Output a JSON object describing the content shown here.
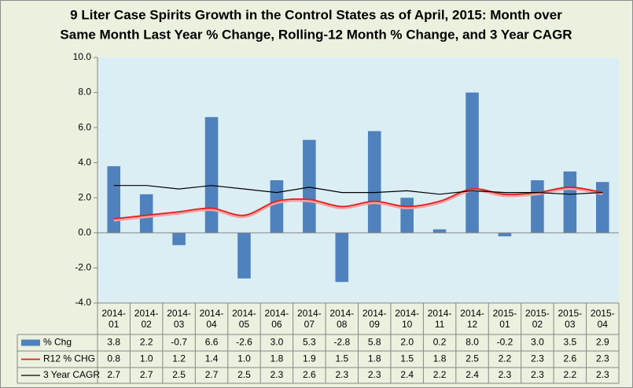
{
  "chart_data": {
    "type": "bar-line-table",
    "title": [
      "9 Liter Case Spirits Growth in the Control States as of April, 2015:  Month over",
      "Same Month Last Year % Change, Rolling-12 Month % Change, and 3 Year CAGR"
    ],
    "categories": [
      "2014-01",
      "2014-02",
      "2014-03",
      "2014-04",
      "2014-05",
      "2014-06",
      "2014-07",
      "2014-08",
      "2014-09",
      "2014-10",
      "2014-11",
      "2014-12",
      "2015-01",
      "2015-02",
      "2015-03",
      "2015-04"
    ],
    "series": [
      {
        "name": "% Chg",
        "type": "bar",
        "color": "#4f81bd",
        "values": [
          3.8,
          2.2,
          -0.7,
          6.6,
          -2.6,
          3.0,
          5.3,
          -2.8,
          5.8,
          2.0,
          0.2,
          8.0,
          -0.2,
          3.0,
          3.5,
          2.9
        ],
        "value_labels": [
          "3.8",
          "2.2",
          "-0.7",
          "6.6",
          "-2.6",
          "3.0",
          "5.3",
          "-2.8",
          "5.8",
          "2.0",
          "0.2",
          "8.0",
          "-0.2",
          "3.0",
          "3.5",
          "2.9"
        ]
      },
      {
        "name": "R12 % CHG",
        "type": "line",
        "smooth": true,
        "color": "#e02020",
        "values": [
          0.8,
          1.0,
          1.2,
          1.4,
          1.0,
          1.8,
          1.9,
          1.5,
          1.8,
          1.5,
          1.8,
          2.5,
          2.2,
          2.3,
          2.6,
          2.3
        ],
        "value_labels": [
          "0.8",
          "1.0",
          "1.2",
          "1.4",
          "1.0",
          "1.8",
          "1.9",
          "1.5",
          "1.8",
          "1.5",
          "1.8",
          "2.5",
          "2.2",
          "2.3",
          "2.6",
          "2.3"
        ]
      },
      {
        "name": "3 Year CAGR",
        "type": "line",
        "smooth": false,
        "color": "#000000",
        "values": [
          2.7,
          2.7,
          2.5,
          2.7,
          2.5,
          2.3,
          2.6,
          2.3,
          2.3,
          2.4,
          2.2,
          2.4,
          2.3,
          2.3,
          2.2,
          2.3
        ],
        "value_labels": [
          "2.7",
          "2.7",
          "2.5",
          "2.7",
          "2.5",
          "2.3",
          "2.6",
          "2.3",
          "2.3",
          "2.4",
          "2.2",
          "2.4",
          "2.3",
          "2.3",
          "2.2",
          "2.3"
        ]
      }
    ],
    "ylim": [
      -4,
      10
    ],
    "yticks": [
      {
        "value": -4,
        "label": "-4.0"
      },
      {
        "value": -2,
        "label": "-2.0"
      },
      {
        "value": 0,
        "label": "0.0"
      },
      {
        "value": 2,
        "label": "2.0"
      },
      {
        "value": 4,
        "label": "4.0"
      },
      {
        "value": 6,
        "label": "6.0"
      },
      {
        "value": 8,
        "label": "8.0"
      },
      {
        "value": 10,
        "label": "10.0"
      }
    ],
    "grid": false
  }
}
